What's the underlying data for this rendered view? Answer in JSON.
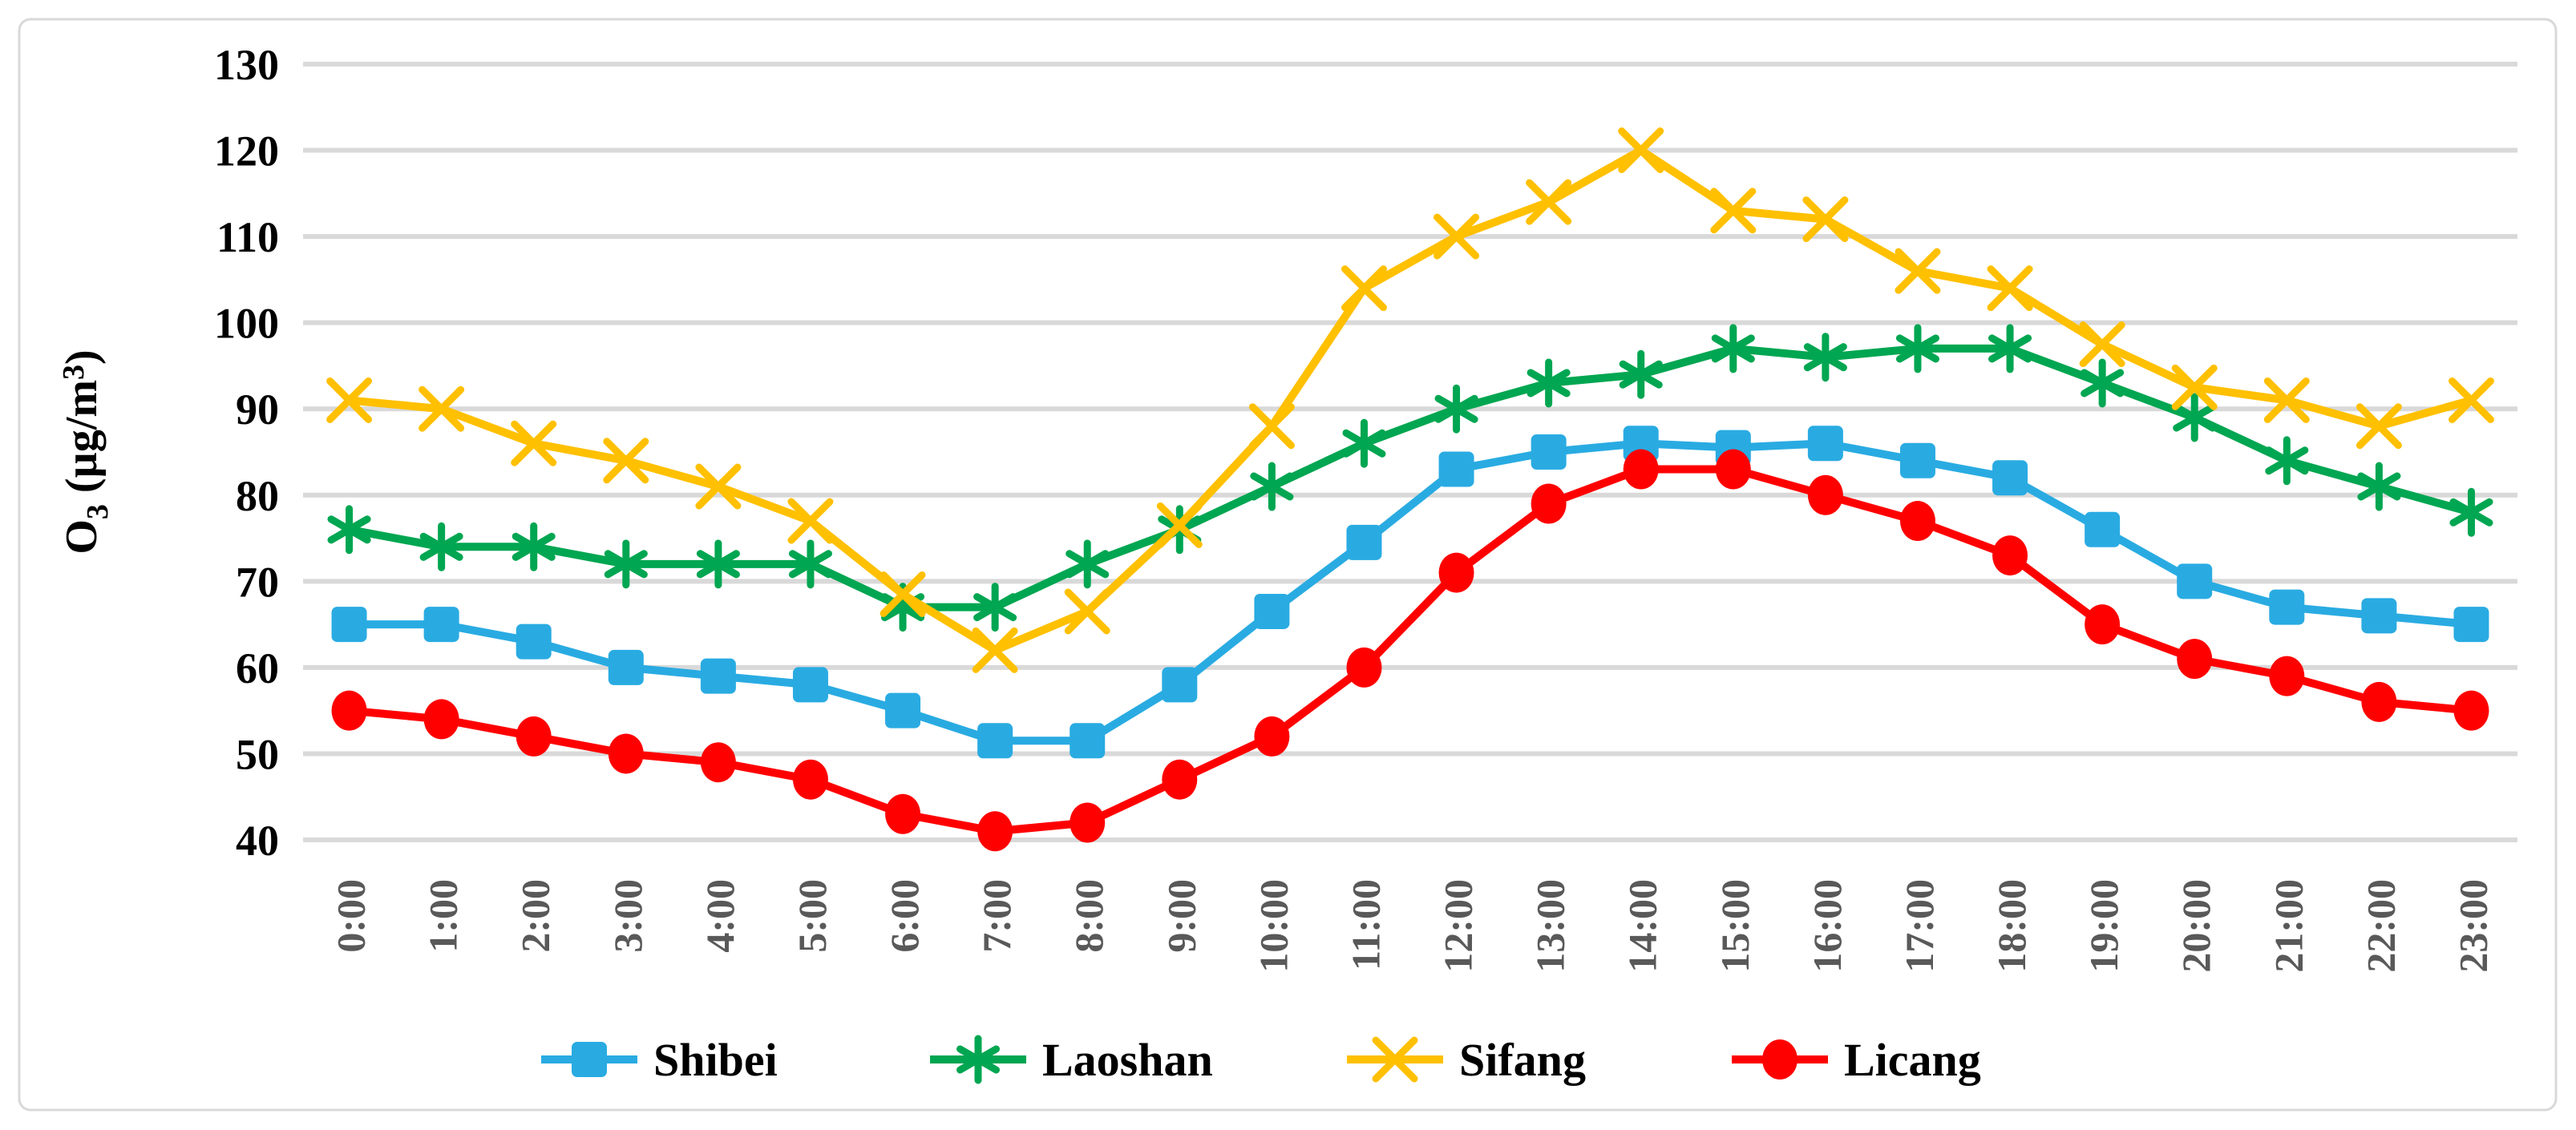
{
  "chart_data": {
    "type": "line",
    "title": "",
    "xlabel": "",
    "ylabel_parts": {
      "prefix": "O",
      "sub": "3",
      "mid": " (µg/m",
      "sup": "3",
      "suffix": ")"
    },
    "ylabel_flat": "O3 (µg/m3)",
    "categories": [
      "0:00",
      "1:00",
      "2:00",
      "3:00",
      "4:00",
      "5:00",
      "6:00",
      "7:00",
      "8:00",
      "9:00",
      "10:00",
      "11:00",
      "12:00",
      "13:00",
      "14:00",
      "15:00",
      "16:00",
      "17:00",
      "18:00",
      "19:00",
      "20:00",
      "21:00",
      "22:00",
      "23:00"
    ],
    "y_axis": {
      "min": 40,
      "max": 130,
      "step": 10,
      "tick_labels": [
        "130",
        "120",
        "110",
        "100",
        "90",
        "80",
        "70",
        "60",
        "50",
        "40"
      ]
    },
    "grid": true,
    "legend_position": "bottom",
    "series": [
      {
        "name": "Shibei",
        "color": "#29ABE2",
        "marker": "square",
        "values": [
          65,
          65,
          63,
          60,
          59,
          58,
          55,
          51.5,
          51.5,
          58,
          66.5,
          74.5,
          83,
          85,
          86,
          85.5,
          86,
          84,
          82,
          76,
          70,
          67,
          66,
          65
        ]
      },
      {
        "name": "Laoshan",
        "color": "#00A651",
        "marker": "asterisk",
        "values": [
          76,
          74,
          74,
          72,
          72,
          72,
          67,
          67,
          72,
          76,
          81,
          86,
          90,
          93,
          94,
          97,
          96,
          97,
          97,
          93,
          89,
          84,
          81,
          78
        ]
      },
      {
        "name": "Sifang",
        "color": "#FFC000",
        "marker": "x",
        "values": [
          91,
          90,
          86,
          84,
          81,
          77,
          68.5,
          62,
          66.5,
          76.5,
          88,
          104,
          110,
          114,
          120,
          113,
          112,
          106,
          104,
          97.5,
          92.5,
          91,
          88,
          91
        ]
      },
      {
        "name": "Licang",
        "color": "#FF0000",
        "marker": "circle",
        "values": [
          55,
          54,
          52,
          50,
          49,
          47,
          43,
          41,
          42,
          47,
          52,
          60,
          71,
          79,
          83,
          83,
          80,
          77,
          73,
          65,
          61,
          59,
          56,
          55
        ]
      }
    ]
  },
  "styles": {
    "background": "#FFFFFF",
    "grid_color": "#D9D9D9",
    "figure_border_color": "#D9D9D9",
    "y_tick_color": "#000000",
    "x_tick_color": "#595959",
    "legend_text_color": "#000000"
  }
}
